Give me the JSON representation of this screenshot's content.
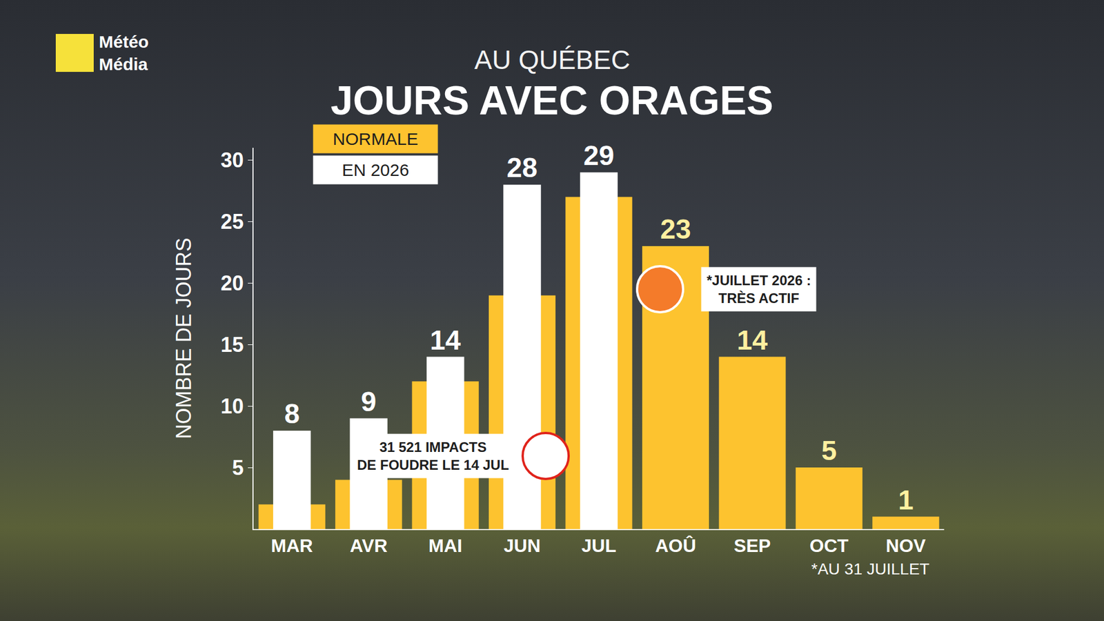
{
  "chart_data": {
    "type": "bar",
    "title": "JOURS AVEC ORAGES",
    "subtitle": "AU QUÉBEC",
    "y_label": "NOMBRE DE JOURS",
    "categories": [
      "MAR",
      "AVR",
      "MAI",
      "JUN",
      "JUL",
      "AOÛ",
      "SEP",
      "OCT",
      "NOV"
    ],
    "series": [
      {
        "name": "NORMALE",
        "color": "#FDC32F",
        "values": [
          2,
          4,
          12,
          19,
          27,
          23,
          14,
          5,
          1
        ],
        "value_labels": [
          null,
          null,
          null,
          null,
          null,
          "23",
          "14",
          "5",
          "1"
        ]
      },
      {
        "name": "EN 2026",
        "color": "#FFFFFF",
        "values": [
          8,
          9,
          14,
          28,
          29,
          null,
          null,
          null,
          null
        ]
      }
    ],
    "ylim": [
      0,
      31
    ],
    "yticks": [
      5,
      10,
      15,
      20,
      25,
      30
    ],
    "grid": false,
    "data_labels": true,
    "legend": "top left",
    "annotations": [
      {
        "text": [
          "31 521 IMPACTS",
          "DE FOUDRE LE 14 JUL"
        ]
      },
      {
        "text": [
          "*JUILLET 2026 :",
          "TRÈS ACTIF"
        ]
      },
      {
        "text": [
          "*AU 31 JUILLET"
        ]
      }
    ],
    "logo": [
      "Météo",
      "Média"
    ]
  }
}
